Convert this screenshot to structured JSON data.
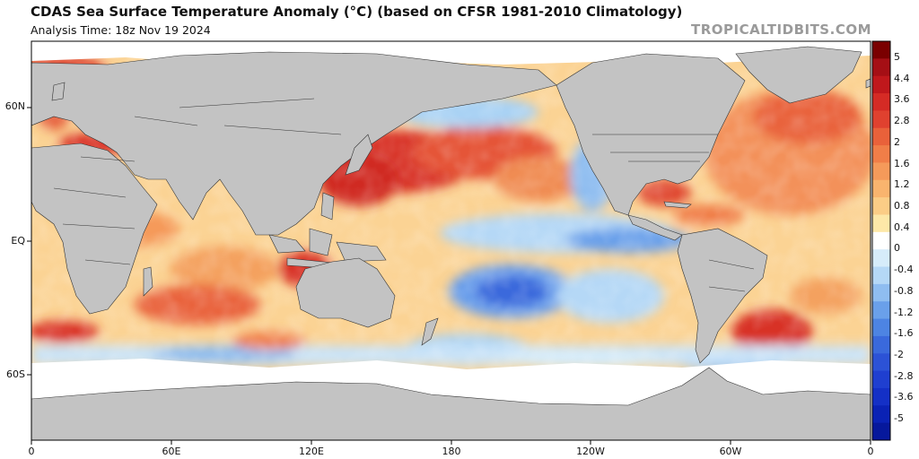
{
  "header": {
    "title": "CDAS Sea Surface Temperature Anomaly (°C) (based on CFSR 1981-2010 Climatology)",
    "analysis_time": "Analysis Time: 18z Nov 19 2024",
    "site": "TROPICALTIDBITS.COM"
  },
  "axes": {
    "lat_labels": [
      "60N",
      "EQ",
      "60S"
    ],
    "lon_labels": [
      "0",
      "60E",
      "120E",
      "180",
      "120W",
      "60W",
      "0"
    ]
  },
  "colorbar": {
    "labels": [
      "5",
      "4.4",
      "3.6",
      "2.8",
      "2",
      "1.6",
      "1.2",
      "0.8",
      "0.4",
      "0",
      "-0.4",
      "-0.8",
      "-1.2",
      "-1.6",
      "-2",
      "-2.8",
      "-3.6",
      "-5"
    ],
    "colors": [
      "#7a0000",
      "#a50f15",
      "#c0181c",
      "#d52b25",
      "#e0412f",
      "#e9613a",
      "#f07e48",
      "#f59a5a",
      "#f9b46e",
      "#fbcd86",
      "#fde8a8",
      "#ffffff",
      "#d6ecfa",
      "#b5d8f6",
      "#8fbdf0",
      "#6aa0ea",
      "#4d84e3",
      "#3a69dc",
      "#2c52d6",
      "#1f3fd0",
      "#1430c6",
      "#0a22b5",
      "#06189c"
    ]
  },
  "colors": {
    "land": "#c3c3c3",
    "ice": "#ffffff",
    "border": "#222222"
  }
}
